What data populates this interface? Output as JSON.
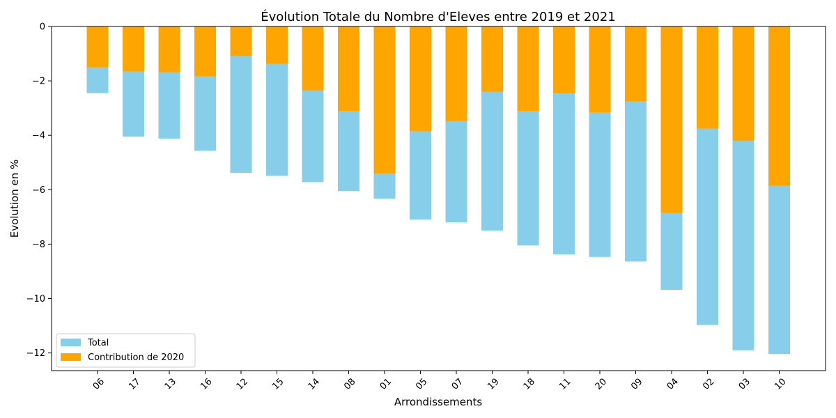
{
  "chart_data": {
    "type": "bar",
    "title": "Évolution Totale du Nombre d'Eleves entre 2019 et 2021",
    "xlabel": "Arrondissements",
    "ylabel": "Evolution en %",
    "categories": [
      "06",
      "17",
      "13",
      "16",
      "12",
      "15",
      "14",
      "08",
      "01",
      "05",
      "07",
      "19",
      "18",
      "11",
      "20",
      "09",
      "04",
      "02",
      "03",
      "10"
    ],
    "series": [
      {
        "name": "Total",
        "color": "#87ceeb",
        "values": [
          -2.45,
          -4.05,
          -4.12,
          -4.57,
          -5.38,
          -5.49,
          -5.72,
          -6.05,
          -6.33,
          -7.1,
          -7.2,
          -7.5,
          -8.05,
          -8.38,
          -8.47,
          -8.64,
          -9.68,
          -10.97,
          -11.9,
          -12.04
        ]
      },
      {
        "name": "Contribution de 2020",
        "color": "#ffa500",
        "values": [
          -1.5,
          -1.65,
          -1.68,
          -1.83,
          -1.08,
          -1.37,
          -2.35,
          -3.1,
          -5.4,
          -3.85,
          -3.47,
          -2.4,
          -3.1,
          -2.45,
          -3.15,
          -2.75,
          -6.85,
          -3.75,
          -4.2,
          -5.85
        ]
      }
    ],
    "ylim": [
      -12.65,
      0
    ],
    "yticks": [
      0,
      -2,
      -4,
      -6,
      -8,
      -10,
      -12
    ],
    "grid": false,
    "legend_position": "lower-left",
    "stacking": "overlay"
  }
}
